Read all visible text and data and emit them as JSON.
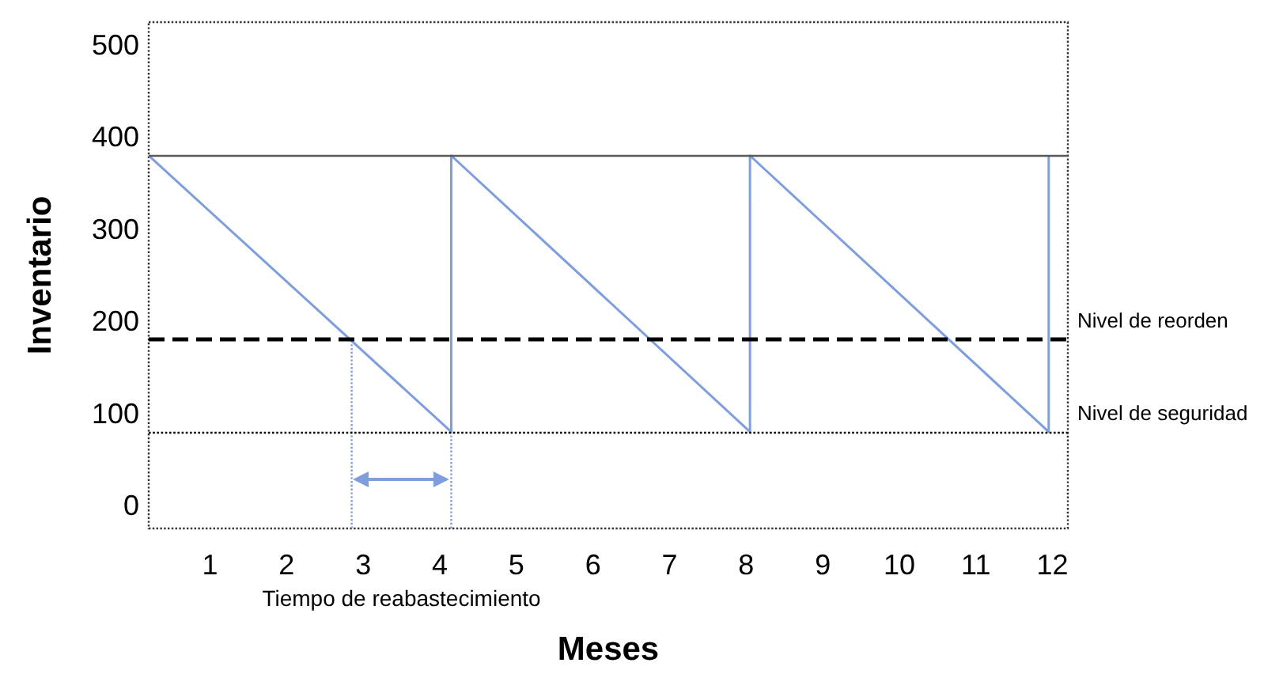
{
  "chart_data": {
    "type": "line",
    "xlabel": "Meses",
    "ylabel": "Inventario",
    "annotations": [
      "Tiempo de reabastecimiento"
    ],
    "xlim": [
      0.2,
      12.2
    ],
    "xticks": [
      1,
      2,
      3,
      4,
      5,
      6,
      7,
      8,
      9,
      10,
      11,
      12
    ],
    "ylim": [
      -25,
      525
    ],
    "yticks": [
      0,
      100,
      200,
      300,
      400,
      500
    ],
    "grid": false,
    "marker": "none",
    "series": [
      {
        "color": "#7f9fdc",
        "line_style": "solid",
        "x": [
          0.2,
          4.15,
          4.15,
          8.05,
          8.05,
          11.95,
          11.95
        ],
        "values": [
          380,
          80,
          380,
          80,
          380,
          80,
          380
        ]
      },
      {
        "color": "#7f9fdc",
        "line_style": "dotted",
        "x": [
          2.85,
          2.85
        ],
        "values": [
          -25,
          180
        ]
      },
      {
        "color": "#7f9fdc",
        "line_style": "dotted",
        "x": [
          4.15,
          4.15
        ],
        "values": [
          -25,
          80
        ]
      }
    ],
    "ref_lines": [
      {
        "axis": "y",
        "value": 380,
        "label": null,
        "color": "#595959",
        "line_style": "solid"
      },
      {
        "axis": "y",
        "value": 180,
        "label": "Nivel de reorden",
        "color": "#000000",
        "line_style": "dashed"
      },
      {
        "axis": "y",
        "value": 80,
        "label": "Nivel de seguridad",
        "color": "#000000",
        "line_style": "dotted"
      }
    ]
  }
}
